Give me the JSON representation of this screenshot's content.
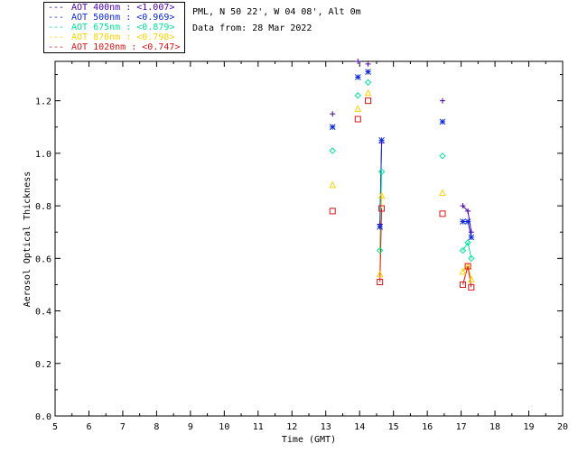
{
  "header": {
    "location": "PML, N 50 22', W 04 08', Alt 0m",
    "date_line": "Data from: 28 Mar 2022"
  },
  "chart_data": {
    "type": "scatter",
    "xlabel": "Time (GMT)",
    "ylabel": "Aerosol Optical Thickness",
    "xlim": [
      5,
      20
    ],
    "ylim": [
      0.0,
      1.35
    ],
    "x_ticks": [
      "5",
      "6",
      "7",
      "8",
      "9",
      "10",
      "11",
      "12",
      "13",
      "14",
      "15",
      "16",
      "17",
      "18",
      "19",
      "20"
    ],
    "y_ticks": [
      "0.0",
      "0.2",
      "0.4",
      "0.6",
      "0.8",
      "1.0",
      "1.2"
    ],
    "grid": false,
    "legend_position": "top-left outside",
    "series": [
      {
        "name": "AOT  400nm : <1.007>",
        "color": "#4b00b4",
        "marker": "plus",
        "x": [
          13.2,
          13.95,
          14.25,
          14.6,
          14.65,
          16.45,
          17.05,
          17.2,
          17.3
        ],
        "y": [
          1.15,
          1.35,
          1.34,
          0.73,
          1.04,
          1.2,
          0.8,
          0.78,
          0.7
        ],
        "connected_groups": [
          [
            3,
            4
          ],
          [
            6,
            7,
            8
          ]
        ]
      },
      {
        "name": "AOT  500nm : <0.969>",
        "color": "#0a28dc",
        "marker": "asterisk",
        "x": [
          13.2,
          13.95,
          14.25,
          14.6,
          14.65,
          16.45,
          17.05,
          17.2,
          17.3
        ],
        "y": [
          1.1,
          1.29,
          1.31,
          0.72,
          1.05,
          1.12,
          0.74,
          0.74,
          0.68
        ],
        "connected_groups": [
          [
            3,
            4
          ],
          [
            6,
            7,
            8
          ]
        ]
      },
      {
        "name": "AOT  675nm : <0.879>",
        "color": "#00e696",
        "marker": "diamond",
        "x": [
          13.2,
          13.95,
          14.25,
          14.6,
          14.65,
          16.45,
          17.05,
          17.2,
          17.3
        ],
        "y": [
          1.01,
          1.22,
          1.27,
          0.63,
          0.93,
          0.99,
          0.63,
          0.66,
          0.6
        ],
        "connected_groups": [
          [
            3,
            4
          ],
          [
            6,
            7,
            8
          ]
        ]
      },
      {
        "name": "AOT  870nm : <0.798>",
        "color": "#ffd200",
        "marker": "triangle",
        "x": [
          13.2,
          13.95,
          14.25,
          14.6,
          14.65,
          16.45,
          17.05,
          17.2,
          17.3
        ],
        "y": [
          0.88,
          1.17,
          1.23,
          0.54,
          0.84,
          0.85,
          0.55,
          0.57,
          0.52
        ],
        "connected_groups": [
          [
            3,
            4
          ],
          [
            6,
            7,
            8
          ]
        ]
      },
      {
        "name": "AOT 1020nm : <0.747>",
        "color": "#dc1414",
        "marker": "square",
        "x": [
          13.2,
          13.95,
          14.25,
          14.6,
          14.65,
          16.45,
          17.05,
          17.2,
          17.3
        ],
        "y": [
          0.78,
          1.13,
          1.2,
          0.51,
          0.79,
          0.77,
          0.5,
          0.57,
          0.49
        ],
        "connected_groups": [
          [
            3,
            4
          ],
          [
            6,
            7,
            8
          ]
        ]
      }
    ]
  }
}
